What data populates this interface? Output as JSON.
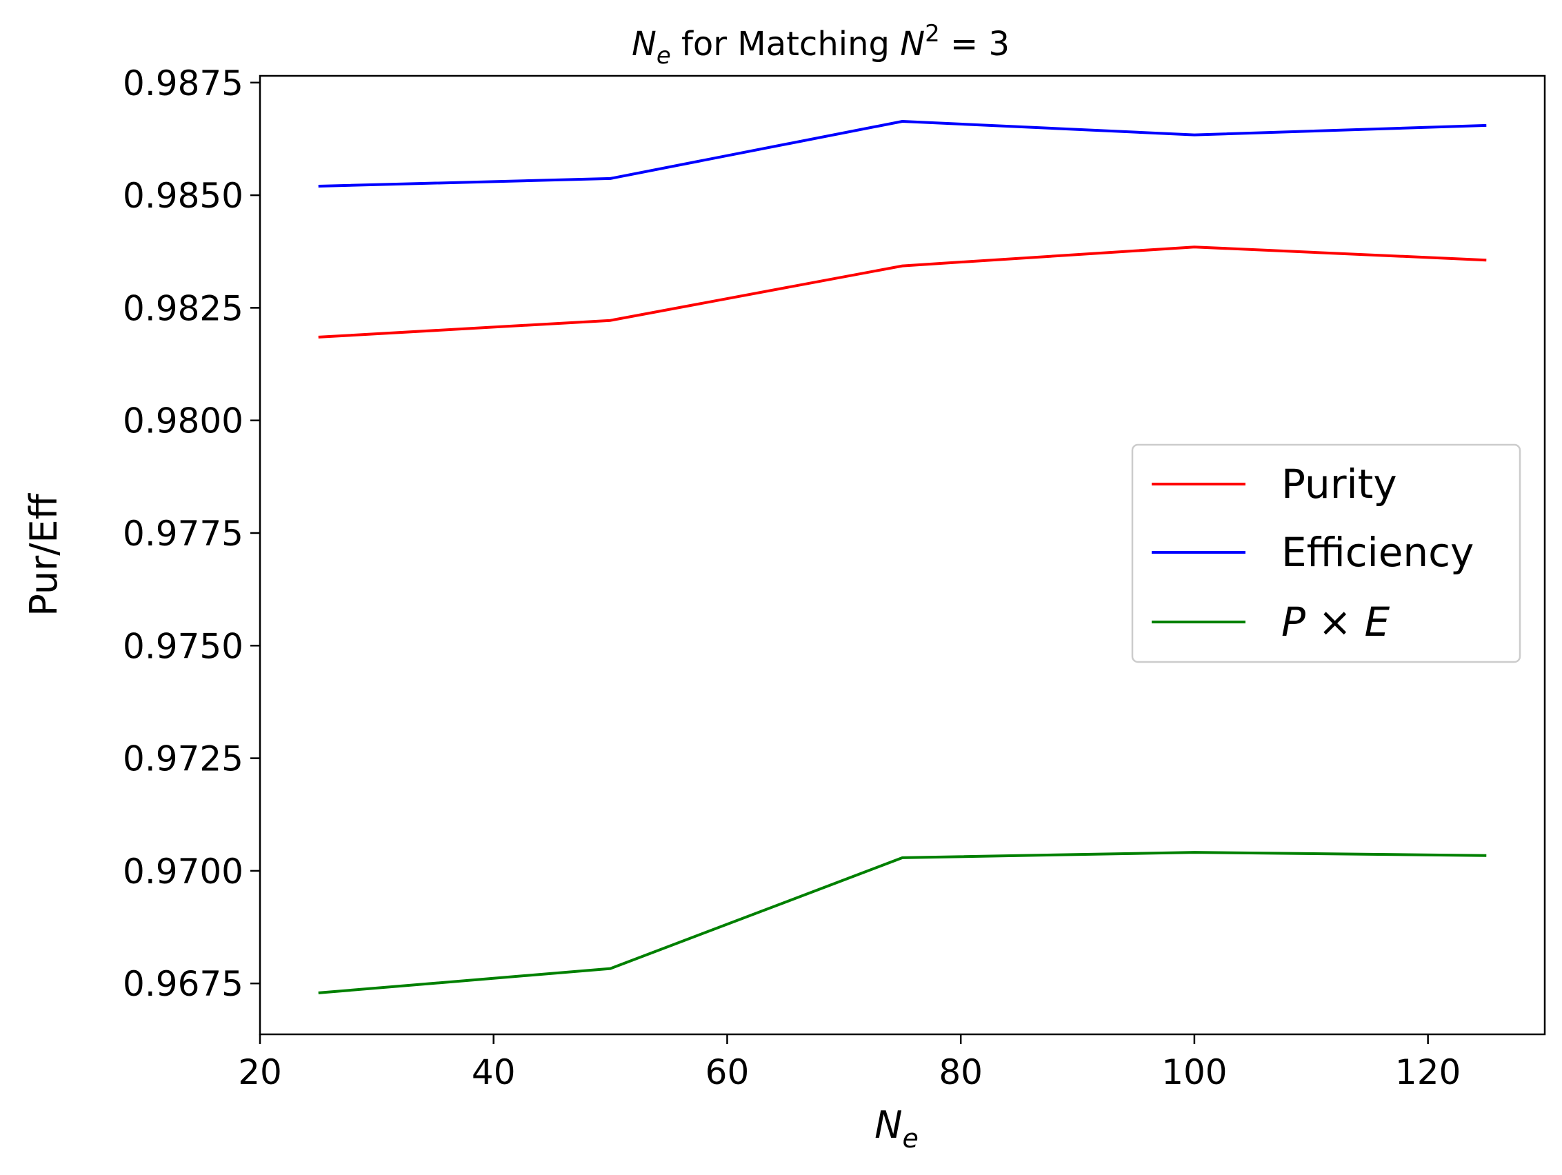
{
  "chart_data": {
    "type": "line",
    "title": {
      "var": "N",
      "sub": "e",
      "mid": " for Matching ",
      "var2": "N",
      "sup": "2",
      "tail": " = 3"
    },
    "xlabel": {
      "var": "N",
      "sub": "e"
    },
    "ylabel": "Pur/Eff",
    "x": [
      25,
      50,
      75,
      100,
      125
    ],
    "xlim": [
      20,
      130
    ],
    "ylim": [
      0.96637,
      0.98765
    ],
    "x_ticks": [
      20,
      40,
      60,
      80,
      100,
      120
    ],
    "x_tick_labels": [
      "20",
      "40",
      "60",
      "80",
      "100",
      "120"
    ],
    "y_ticks": [
      0.9675,
      0.97,
      0.9725,
      0.975,
      0.9775,
      0.98,
      0.9825,
      0.985,
      0.9875
    ],
    "y_tick_labels": [
      "0.9675",
      "0.9700",
      "0.9725",
      "0.9750",
      "0.9775",
      "0.9800",
      "0.9825",
      "0.9850",
      "0.9875"
    ],
    "grid": false,
    "legend_position": "center-right",
    "series": [
      {
        "name": "Purity",
        "color": "#ff0000",
        "values": [
          0.98185,
          0.98222,
          0.98343,
          0.98385,
          0.98356
        ]
      },
      {
        "name": "Efficiency",
        "color": "#0000ff",
        "values": [
          0.9852,
          0.98537,
          0.98664,
          0.98634,
          0.98655
        ]
      },
      {
        "name": "P × E",
        "name_parts": [
          "P",
          " × ",
          "E"
        ],
        "color": "#008000",
        "values": [
          0.96729,
          0.96783,
          0.97029,
          0.97041,
          0.97034
        ]
      }
    ]
  }
}
